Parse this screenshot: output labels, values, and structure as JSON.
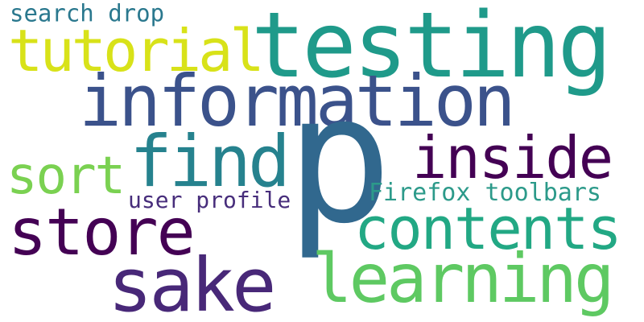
{
  "words": [
    {
      "text": "search drop",
      "color": "#2a788e"
    },
    {
      "text": "testing",
      "color": "#1f9a8a"
    },
    {
      "text": "tutorial",
      "color": "#d8e219"
    },
    {
      "text": "information",
      "color": "#3b528b"
    },
    {
      "text": "p",
      "color": "#31688e"
    },
    {
      "text": "find",
      "color": "#26828e"
    },
    {
      "text": "inside",
      "color": "#440154"
    },
    {
      "text": "sort",
      "color": "#7ad151"
    },
    {
      "text": "user profile",
      "color": "#472d7b"
    },
    {
      "text": "Firefox toolbars",
      "color": "#2c9a8a"
    },
    {
      "text": "store",
      "color": "#440154"
    },
    {
      "text": "contents",
      "color": "#22a884"
    },
    {
      "text": "sake",
      "color": "#482878"
    },
    {
      "text": "learning",
      "color": "#5ec962"
    }
  ]
}
